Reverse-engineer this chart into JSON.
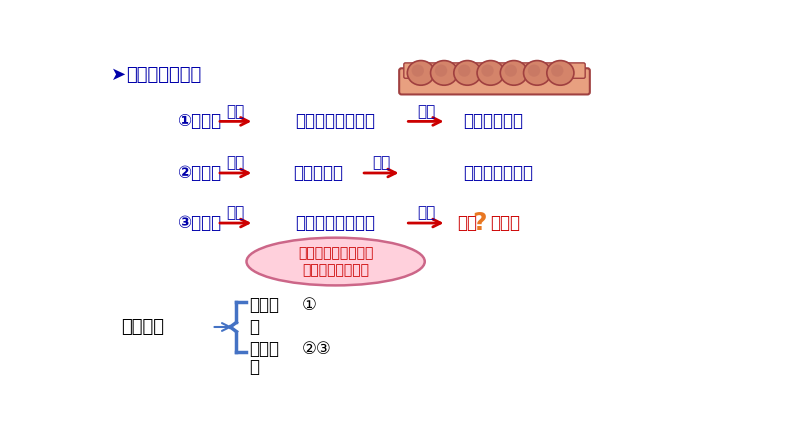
{
  "bg_color": "#ffffff",
  "title_text": "沃泰默的实验：",
  "row1_left": "①稀盐酸",
  "row1_inject": "注入",
  "row1_middle": "狗的上段小肠肠腔",
  "row1_result": "结果",
  "row1_right": "胰腺分泋胰液",
  "row2_left": "②稀盐酸",
  "row2_inject": "注入",
  "row2_middle": "狗的血液中",
  "row2_result": "结果",
  "row2_right": "胰腺不分泋胰液",
  "row3_left": "③稀盐酸",
  "row3_inject": "注入",
  "row3_middle": "狗的上段小肠肠腔",
  "row3_result": "结果",
  "row3_right_pre": "胰腺",
  "row3_right_post": "泋胰液",
  "ellipse_text1": "切除通向该段小肠的",
  "ellipse_text2": "神经，只留下血管",
  "bottom_label": "对照实验",
  "bottom_g1": "对照组",
  "bottom_g1_num": "①",
  "bottom_colon1": "：",
  "bottom_g2": "实验组",
  "bottom_g2_num": "②③",
  "bottom_colon2": "：",
  "dark_blue": "#0000AA",
  "navy": "#000080",
  "red": "#CC0000",
  "orange": "#E87722",
  "bracket_blue": "#4472C4",
  "pink_fill": "#FFD0DC",
  "pink_border": "#CC6688",
  "intestine_body": "#D4846A",
  "intestine_bump": "#B85A50",
  "intestine_base": "#C06060"
}
